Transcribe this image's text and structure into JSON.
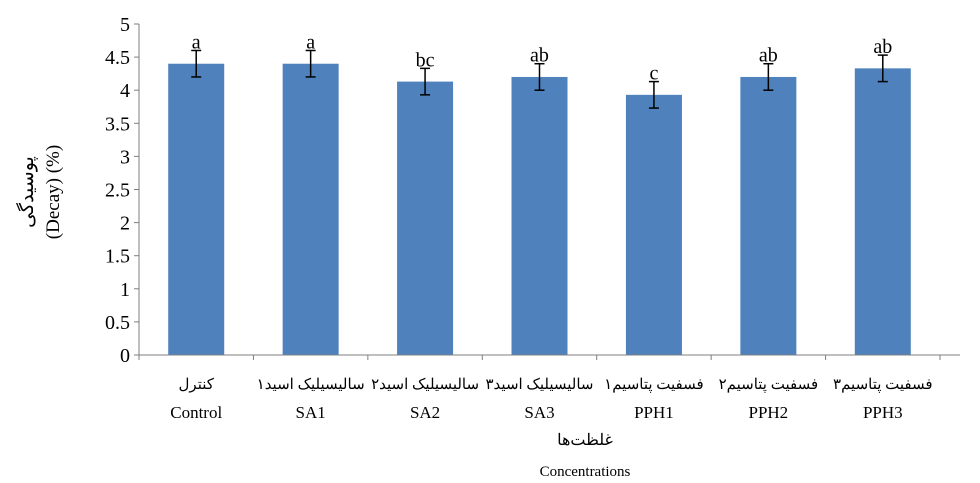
{
  "chart_data": {
    "type": "bar",
    "categories_fa": [
      "کنترل",
      "سالیسیلیک اسید۱",
      "سالیسیلیک اسید۲",
      "سالیسیلیک اسید۳",
      "فسفیت پتاسیم۱",
      "فسفیت پتاسیم۲",
      "فسفیت پتاسیم۳"
    ],
    "categories": [
      "Control",
      "SA1",
      "SA2",
      "SA3",
      "PPH1",
      "PPH2",
      "PPH3"
    ],
    "values": [
      4.4,
      4.4,
      4.13,
      4.2,
      3.93,
      4.2,
      4.33
    ],
    "errors": [
      0.2,
      0.2,
      0.2,
      0.2,
      0.2,
      0.2,
      0.2
    ],
    "significance": [
      "a",
      "a",
      "bc",
      "ab",
      "c",
      "ab",
      "ab"
    ],
    "ylim": [
      0,
      5
    ],
    "yticks": [
      "0",
      "0.5",
      "1",
      "1.5",
      "2",
      "2.5",
      "3",
      "3.5",
      "4",
      "4.5",
      "5"
    ],
    "xlabel_fa": "غلظت‌ها",
    "xlabel_en": "Concentrations",
    "ylabel_fa": "پوسیدگی",
    "ylabel_en": "(Decay) (%)",
    "bar_color": "#4f81bd",
    "grid": false,
    "legend": "none"
  }
}
